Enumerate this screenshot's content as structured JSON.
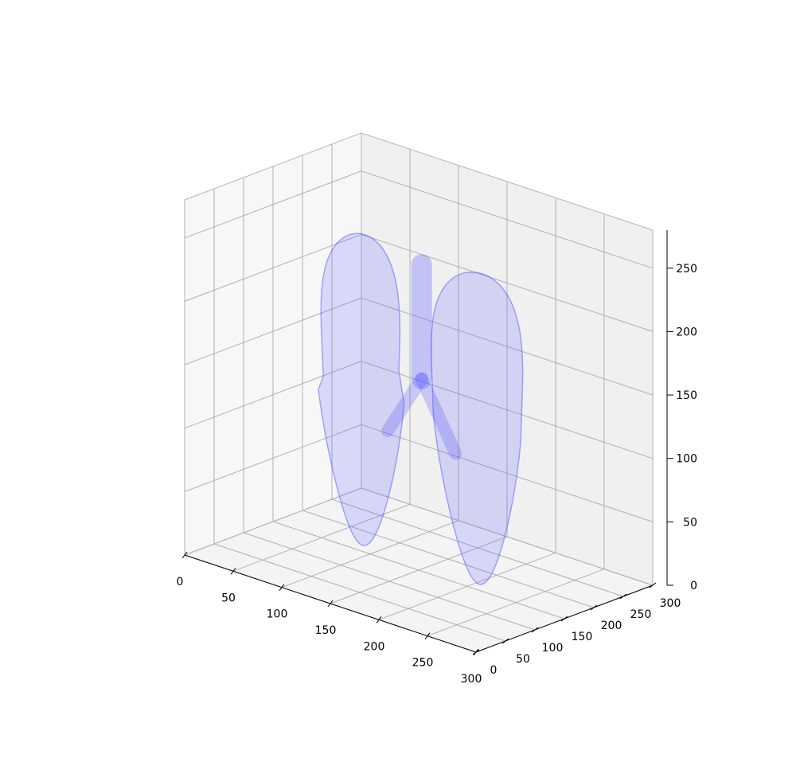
{
  "chart_data": {
    "type": "surface3d",
    "title": "",
    "xlabel": "",
    "ylabel": "",
    "zlabel": "",
    "xlim": [
      0,
      300
    ],
    "ylim": [
      0,
      300
    ],
    "zlim": [
      0,
      280
    ],
    "x_ticks": [
      0,
      50,
      100,
      150,
      200,
      250,
      300
    ],
    "y_ticks": [
      0,
      50,
      100,
      150,
      200,
      250,
      300
    ],
    "z_ticks": [
      0,
      50,
      100,
      150,
      200,
      250
    ],
    "x_tick_labels": [
      "0",
      "50",
      "100",
      "150",
      "200",
      "250",
      "300"
    ],
    "y_tick_labels": [
      "0",
      "50",
      "100",
      "150",
      "200",
      "250",
      "300"
    ],
    "z_tick_labels": [
      "0",
      "50",
      "100",
      "150",
      "200",
      "250"
    ],
    "grid": true,
    "surface_color": "#4b4bff",
    "surface_alpha": 0.18,
    "objects": [
      {
        "name": "right-lung",
        "x_range": [
          45,
          135
        ],
        "y_range": [
          70,
          230
        ],
        "z_range": [
          5,
          250
        ]
      },
      {
        "name": "left-lung",
        "x_range": [
          165,
          255
        ],
        "y_range": [
          70,
          230
        ],
        "z_range": [
          5,
          250
        ]
      },
      {
        "name": "trachea-bronchi",
        "x_range": [
          115,
          185
        ],
        "y_range": [
          120,
          190
        ],
        "z_range": [
          90,
          250
        ]
      }
    ]
  },
  "colors": {
    "pane_back": "#f0f0f0",
    "pane_side": "#f7f7f7",
    "pane_floor": "#f4f4f4",
    "grid": "#b0b0b0",
    "surface": "#4b4bff"
  }
}
